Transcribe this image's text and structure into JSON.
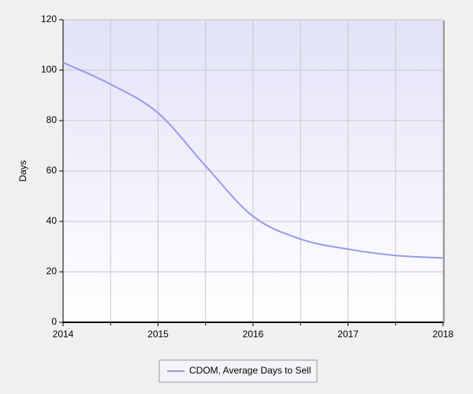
{
  "chart_data": {
    "type": "line",
    "y_label": "Days",
    "x": [
      2014,
      2014.5,
      2015,
      2015.5,
      2016,
      2016.5,
      2017,
      2017.5,
      2018
    ],
    "series": [
      {
        "name": "CDOM, Average Days to Sell",
        "color": "#9999ee",
        "values": [
          103,
          94.4,
          83,
          62,
          42,
          33,
          29,
          26.5,
          25.5
        ]
      }
    ],
    "xlim": [
      2014,
      2018
    ],
    "xticks": [
      2014,
      2015,
      2016,
      2017,
      2018
    ],
    "ylim": [
      0,
      120
    ],
    "yticks": [
      0,
      20,
      40,
      60,
      80,
      100,
      120
    ],
    "grid": true,
    "legend": "bottom"
  }
}
